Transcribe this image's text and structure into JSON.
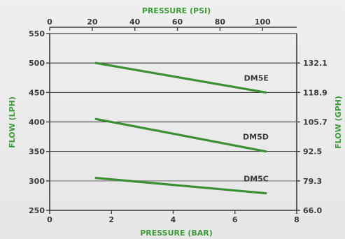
{
  "colors": {
    "accent": "#3f9a3a",
    "line": "#3c8f35",
    "axis": "#3a3a3a",
    "grid": "#222222",
    "grid_muted": "#9a9a9a",
    "label": "#3a3a3a"
  },
  "chart_data": {
    "type": "line",
    "title": "",
    "xlabel_bottom": "PRESSURE (BAR)",
    "xlabel_top": "PRESSURE (PSI)",
    "ylabel_left": "FLOW (LPH)",
    "ylabel_right": "FLOW (GPH)",
    "xlim": [
      0,
      8
    ],
    "ylim": [
      250,
      550
    ],
    "x_ticks_bottom": [
      {
        "value": 0,
        "label": "0"
      },
      {
        "value": 2,
        "label": "2"
      },
      {
        "value": 4,
        "label": "4"
      },
      {
        "value": 6,
        "label": "6"
      },
      {
        "value": 8,
        "label": "8"
      }
    ],
    "x_ticks_top": [
      {
        "value": 0,
        "label": "0"
      },
      {
        "value": 20,
        "label": "20"
      },
      {
        "value": 40,
        "label": "40"
      },
      {
        "value": 60,
        "label": "60"
      },
      {
        "value": 80,
        "label": "80"
      },
      {
        "value": 100,
        "label": "100"
      }
    ],
    "y_ticks_left": [
      {
        "value": 550,
        "label": "550"
      },
      {
        "value": 500,
        "label": "500"
      },
      {
        "value": 450,
        "label": "450"
      },
      {
        "value": 400,
        "label": "400"
      },
      {
        "value": 350,
        "label": "350"
      },
      {
        "value": 300,
        "label": "300"
      },
      {
        "value": 250,
        "label": "250"
      }
    ],
    "y_ticks_right": [
      {
        "value": 500,
        "label": "132.1"
      },
      {
        "value": 450,
        "label": "118.9"
      },
      {
        "value": 400,
        "label": "105.7"
      },
      {
        "value": 350,
        "label": "92.5"
      },
      {
        "value": 300,
        "label": "79.3"
      },
      {
        "value": 250,
        "label": "66.0"
      }
    ],
    "grid_lines": [
      550,
      500,
      450,
      400,
      350,
      300
    ],
    "series": [
      {
        "name": "DM5E",
        "x": [
          1.5,
          7.0
        ],
        "y": [
          500,
          450
        ]
      },
      {
        "name": "DM5D",
        "x": [
          1.5,
          7.0
        ],
        "y": [
          405,
          350
        ]
      },
      {
        "name": "DM5C",
        "x": [
          1.5,
          7.0
        ],
        "y": [
          305,
          279
        ]
      }
    ]
  }
}
